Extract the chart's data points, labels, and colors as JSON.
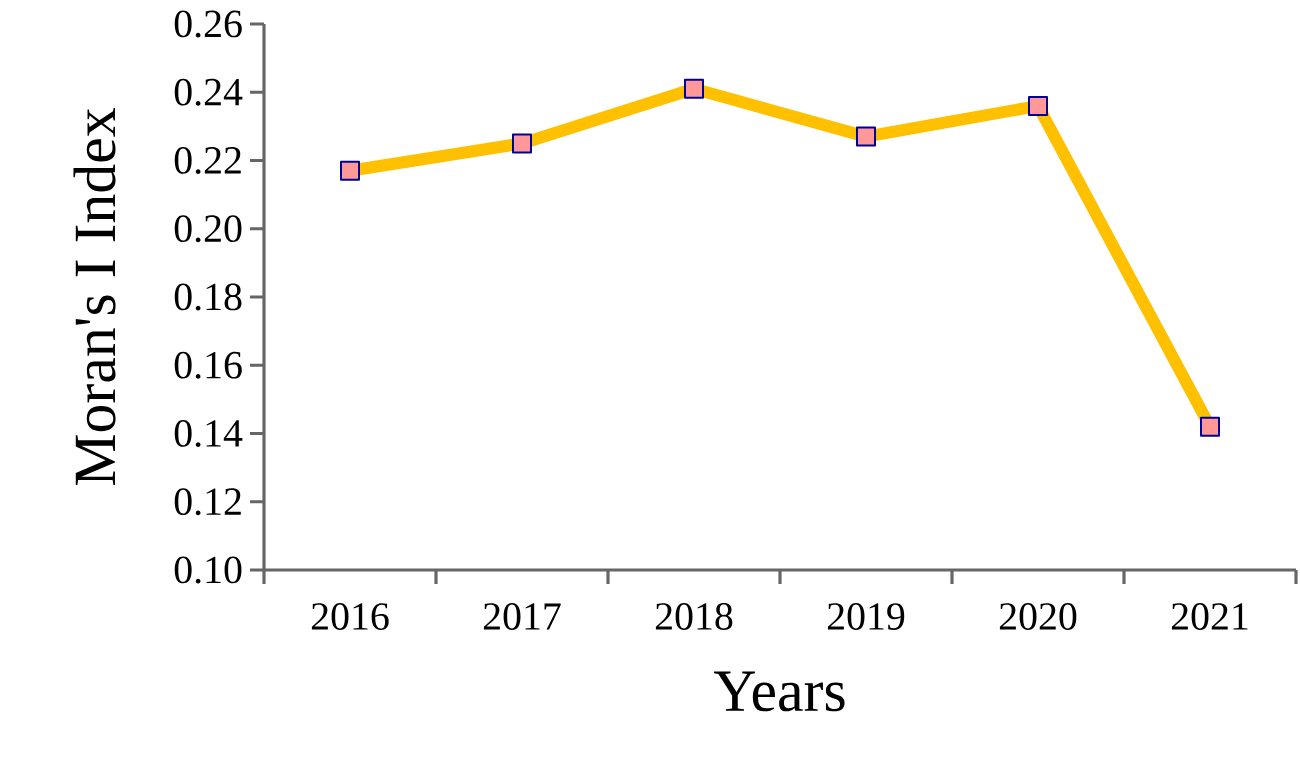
{
  "chart_data": {
    "type": "line",
    "xlabel": "Years",
    "ylabel": "Moran's I Index",
    "categories": [
      "2016",
      "2017",
      "2018",
      "2019",
      "2020",
      "2021"
    ],
    "series": [
      {
        "color": "#ffc000",
        "values": [
          0.217,
          0.225,
          0.241,
          0.227,
          0.236,
          0.142
        ]
      }
    ],
    "ylim": [
      0.1,
      0.26
    ],
    "yticks": [
      {
        "value": 0.1,
        "label": "0.10"
      },
      {
        "value": 0.12,
        "label": "0.12"
      },
      {
        "value": 0.14,
        "label": "0.14"
      },
      {
        "value": 0.16,
        "label": "0.16"
      },
      {
        "value": 0.18,
        "label": "0.18"
      },
      {
        "value": 0.2,
        "label": "0.20"
      },
      {
        "value": 0.22,
        "label": "0.22"
      },
      {
        "value": 0.24,
        "label": "0.24"
      },
      {
        "value": 0.26,
        "label": "0.26"
      }
    ],
    "grid": false,
    "marker": "square",
    "line_style": "solid"
  }
}
